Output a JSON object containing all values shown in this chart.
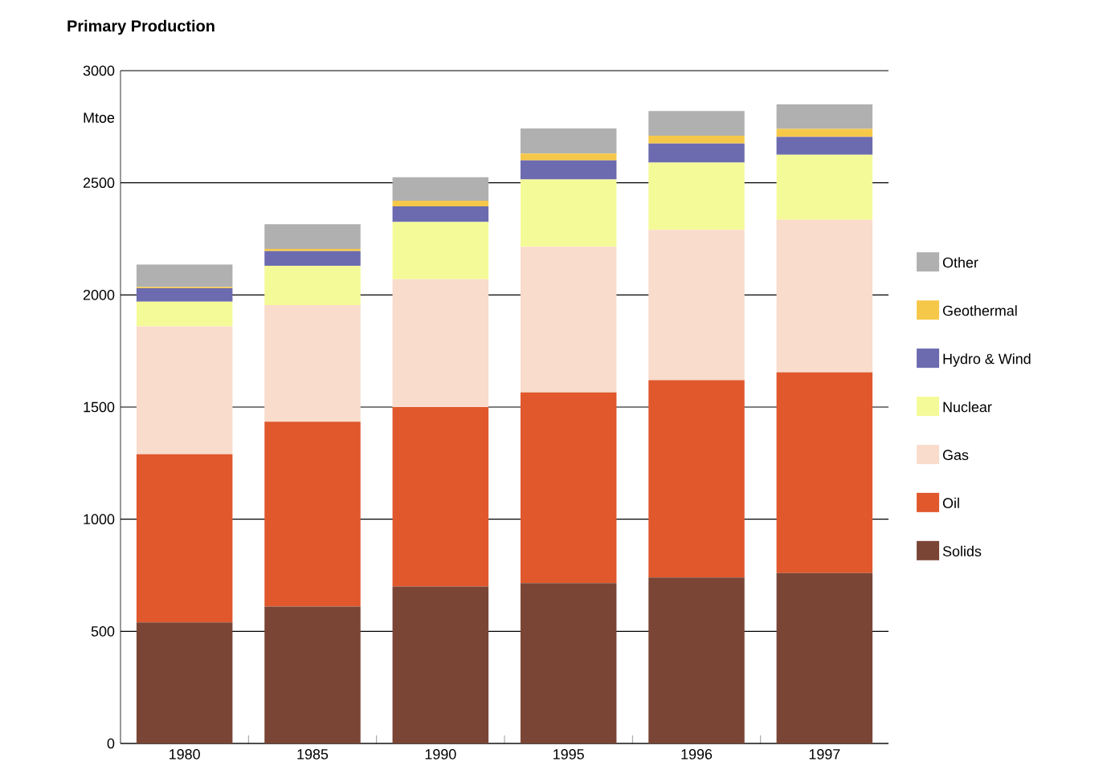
{
  "chart_data": {
    "type": "bar",
    "title": "Primary Production",
    "ylabel": "Mtoe",
    "stacked": true,
    "grid": "y",
    "legend": "right",
    "categories": [
      "1980",
      "1985",
      "1990",
      "1995",
      "1996",
      "1997"
    ],
    "ylim": [
      0,
      3000
    ],
    "yticks": [
      0,
      500,
      1000,
      1500,
      2000,
      2500,
      3000
    ],
    "series": [
      {
        "name": "Solids",
        "color": "#7a4535",
        "values": [
          540,
          610,
          700,
          715,
          740,
          760
        ]
      },
      {
        "name": "Oil",
        "color": "#e0582c",
        "values": [
          750,
          825,
          800,
          850,
          880,
          895
        ]
      },
      {
        "name": "Gas",
        "color": "#f9dccb",
        "values": [
          570,
          520,
          570,
          650,
          670,
          680
        ]
      },
      {
        "name": "Nuclear",
        "color": "#f5fa98",
        "values": [
          110,
          175,
          255,
          300,
          300,
          290
        ]
      },
      {
        "name": "Hydro & Wind",
        "color": "#6c6bb0",
        "values": [
          60,
          65,
          70,
          85,
          85,
          80
        ]
      },
      {
        "name": "Geothermal",
        "color": "#f6c84a",
        "values": [
          5,
          10,
          25,
          30,
          35,
          35
        ]
      },
      {
        "name": "Other",
        "color": "#b0b0b0",
        "values": [
          100,
          110,
          105,
          112,
          110,
          110
        ]
      }
    ]
  }
}
